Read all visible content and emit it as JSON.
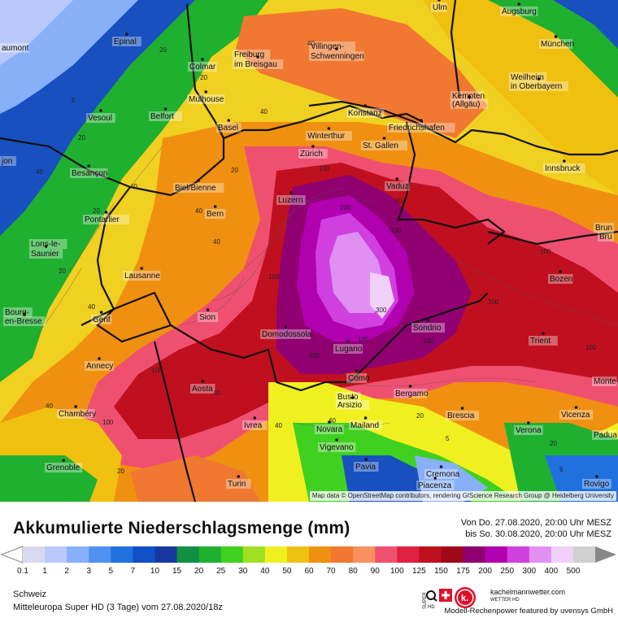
{
  "map": {
    "attribution": "Map data © OpenStreetMap contributors, rendering GIScience Research Group @ Heidelberg University",
    "cities": [
      {
        "name": "Ulm"
      },
      {
        "name": "Augsburg"
      },
      {
        "name": "Epinal"
      },
      {
        "name": "Villingen-"
      },
      {
        "name": "Schwenningen"
      },
      {
        "name": "Freiburg"
      },
      {
        "name": "im Breisgau"
      },
      {
        "name": "München"
      },
      {
        "name": "aumont"
      },
      {
        "name": "Colmar"
      },
      {
        "name": "Weilheim"
      },
      {
        "name": "in Oberbayern"
      },
      {
        "name": "Mulhouse"
      },
      {
        "name": "Kempten"
      },
      {
        "name": "(Allgäu)"
      },
      {
        "name": "Konstanz"
      },
      {
        "name": "Vesoul"
      },
      {
        "name": "Belfort"
      },
      {
        "name": "Basel"
      },
      {
        "name": "Friedrichshafen"
      },
      {
        "name": "Winterthur"
      },
      {
        "name": "St. Gallen"
      },
      {
        "name": "Zürich"
      },
      {
        "name": "Innsbruck"
      },
      {
        "name": "jon"
      },
      {
        "name": "Besançon"
      },
      {
        "name": "Biel/Bienne"
      },
      {
        "name": "Vaduz"
      },
      {
        "name": "Luzern"
      },
      {
        "name": "Bern"
      },
      {
        "name": "Pontarlier"
      },
      {
        "name": "Brun"
      },
      {
        "name": "Bru"
      },
      {
        "name": "Lons-le-"
      },
      {
        "name": "Saunier"
      },
      {
        "name": "Lausanne"
      },
      {
        "name": "Bozen"
      },
      {
        "name": "Bourg-"
      },
      {
        "name": "en-Bresse"
      },
      {
        "name": "Sion"
      },
      {
        "name": "Genf"
      },
      {
        "name": "Sondrio"
      },
      {
        "name": "Domodossola"
      },
      {
        "name": "Trient"
      },
      {
        "name": "Annecy"
      },
      {
        "name": "Lugano"
      },
      {
        "name": "Como"
      },
      {
        "name": "Aosta"
      },
      {
        "name": "Busto"
      },
      {
        "name": "Arsizio"
      },
      {
        "name": "Bergamo"
      },
      {
        "name": "Monte"
      },
      {
        "name": "Chambéry"
      },
      {
        "name": "Brescia"
      },
      {
        "name": "Vicenza"
      },
      {
        "name": "Ivrea"
      },
      {
        "name": "Novara"
      },
      {
        "name": "Mailand"
      },
      {
        "name": "Verona"
      },
      {
        "name": "Padua"
      },
      {
        "name": "Vigevano"
      },
      {
        "name": "Grenoble"
      },
      {
        "name": "Pavia"
      },
      {
        "name": "Cremona"
      },
      {
        "name": "Turin"
      },
      {
        "name": "Piacenza"
      },
      {
        "name": "Rovigo"
      }
    ],
    "contour_values": [
      "40",
      "20",
      "20",
      "40",
      "5",
      "20",
      "40",
      "40",
      "20",
      "20",
      "40",
      "20",
      "40",
      "40",
      "100",
      "60",
      "100",
      "100",
      "100",
      "100",
      "100",
      "100",
      "200",
      "300",
      "200",
      "100",
      "100",
      "40",
      "20",
      "40",
      "40",
      "40",
      "100",
      "20",
      "5",
      "5",
      "20"
    ]
  },
  "header": {
    "title": "Akkumulierte Niederschlagsmenge (mm)",
    "period_from": "Von Do. 27.08.2020, 20:00 Uhr MESZ",
    "period_to": "bis So. 30.08.2020, 20:00 Uhr MESZ"
  },
  "legend": {
    "unit": "mm",
    "stops": [
      {
        "label": "0.1",
        "color": "#d8d8f0"
      },
      {
        "label": "1",
        "color": "#b8c8f8"
      },
      {
        "label": "2",
        "color": "#88b0f8"
      },
      {
        "label": "3",
        "color": "#5090f0"
      },
      {
        "label": "5",
        "color": "#2070e0"
      },
      {
        "label": "7",
        "color": "#1050c8"
      },
      {
        "label": "10",
        "color": "#1838a0"
      },
      {
        "label": "15",
        "color": "#109040"
      },
      {
        "label": "20",
        "color": "#20b030"
      },
      {
        "label": "25",
        "color": "#40d020"
      },
      {
        "label": "30",
        "color": "#a0e020"
      },
      {
        "label": "40",
        "color": "#f0f020"
      },
      {
        "label": "50",
        "color": "#f0c010"
      },
      {
        "label": "60",
        "color": "#f09010"
      },
      {
        "label": "70",
        "color": "#f07830"
      },
      {
        "label": "80",
        "color": "#f89060"
      },
      {
        "label": "90",
        "color": "#f05070"
      },
      {
        "label": "100",
        "color": "#e02040"
      },
      {
        "label": "125",
        "color": "#c01020"
      },
      {
        "label": "150",
        "color": "#a00818"
      },
      {
        "label": "175",
        "color": "#900070"
      },
      {
        "label": "200",
        "color": "#b000b0"
      },
      {
        "label": "250",
        "color": "#d040e0"
      },
      {
        "label": "300",
        "color": "#e090f0"
      },
      {
        "label": "400",
        "color": "#f0d0f8"
      },
      {
        "label": "500",
        "color": "#d0d0d0"
      }
    ]
  },
  "footer": {
    "region": "Schweiz",
    "model": "Mitteleuropa Super HD (3 Tage) vom 27.08.2020/18z",
    "logo_text_1": "SUPER",
    "logo_text_2": "HD",
    "brand": "kachelmannwetter.com",
    "brand_sub": "WETTER HD",
    "brand_letter": "k.",
    "credit": "Modell-Rechenpower featured by uvensys GmbH"
  }
}
